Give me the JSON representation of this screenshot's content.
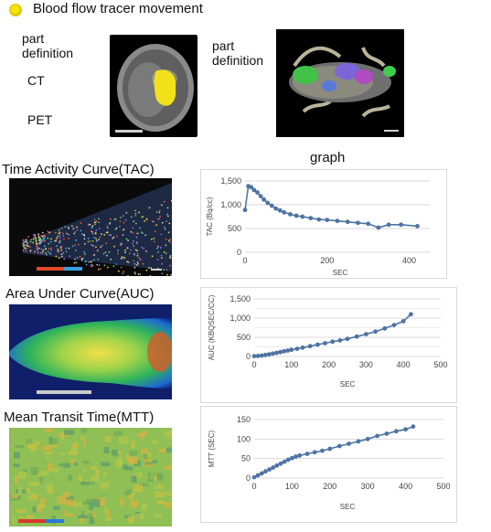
{
  "header": {
    "title": "Blood flow tracer movement",
    "bullet_color": "#e8d400"
  },
  "top_left": {
    "part_definition": "part\ndefinition",
    "ct": "CT",
    "pet": "PET"
  },
  "top_right": {
    "part_definition": "part\ndefinition"
  },
  "graph_heading": "graph",
  "sections": {
    "tac": "Time Activity Curve(TAC)",
    "auc": "Area Under Curve(AUC)",
    "mtt": "Mean Transit Time(MTT)"
  },
  "chart_data": [
    {
      "type": "line",
      "xlabel": "SEC",
      "ylabel": "TAC (Bq/cc)",
      "xlim": [
        0,
        450
      ],
      "ylim": [
        0,
        1500
      ],
      "xticks": [
        "0",
        "200",
        "400"
      ],
      "xtick_values": [
        0,
        200,
        400
      ],
      "yticks": [
        "0",
        "500",
        "1,000",
        "1,500"
      ],
      "ytick_values": [
        0,
        500,
        1000,
        1500
      ],
      "grid": true,
      "series": [
        {
          "color": "#4e73a3",
          "x": [
            0,
            8,
            15,
            22,
            30,
            38,
            46,
            55,
            65,
            75,
            85,
            95,
            110,
            125,
            140,
            160,
            180,
            200,
            225,
            250,
            275,
            300,
            325,
            350,
            380,
            420
          ],
          "y": [
            890,
            1390,
            1370,
            1310,
            1260,
            1180,
            1110,
            1040,
            980,
            920,
            880,
            840,
            800,
            770,
            750,
            720,
            690,
            680,
            660,
            640,
            620,
            600,
            520,
            580,
            580,
            550
          ]
        }
      ]
    },
    {
      "type": "line",
      "xlabel": "SEC",
      "ylabel": "AUC (KBQSEC/CC)",
      "xlim": [
        0,
        500
      ],
      "ylim": [
        0,
        1500
      ],
      "xticks": [
        "0",
        "100",
        "200",
        "300",
        "400",
        "500"
      ],
      "xtick_values": [
        0,
        100,
        200,
        300,
        400,
        500
      ],
      "yticks": [
        "0",
        "500",
        "1,000",
        "1,500"
      ],
      "ytick_values": [
        0,
        500,
        1000,
        1500
      ],
      "yticks_minor": [
        "250",
        "750",
        "1,250"
      ],
      "yticks_minor_values": [
        250,
        750,
        1250
      ],
      "grid": true,
      "series": [
        {
          "color": "#4e73a3",
          "x": [
            0,
            10,
            20,
            30,
            40,
            50,
            60,
            70,
            80,
            90,
            100,
            115,
            130,
            150,
            170,
            190,
            210,
            230,
            250,
            275,
            300,
            325,
            350,
            375,
            400,
            420
          ],
          "y": [
            10,
            15,
            25,
            40,
            55,
            75,
            95,
            115,
            135,
            155,
            175,
            200,
            230,
            270,
            310,
            345,
            385,
            420,
            460,
            520,
            580,
            650,
            730,
            820,
            920,
            1100
          ]
        }
      ]
    },
    {
      "type": "line",
      "xlabel": "SEC",
      "ylabel": "MTT (SEC)",
      "xlim": [
        0,
        500
      ],
      "ylim": [
        0,
        150
      ],
      "xticks": [
        "0",
        "100",
        "200",
        "300",
        "400",
        "500"
      ],
      "xtick_values": [
        0,
        100,
        200,
        300,
        400,
        500
      ],
      "yticks": [
        "0",
        "50",
        "100",
        "150"
      ],
      "ytick_values": [
        0,
        50,
        100,
        150
      ],
      "grid": true,
      "series": [
        {
          "color": "#4e73a3",
          "x": [
            0,
            10,
            20,
            30,
            40,
            50,
            60,
            70,
            80,
            90,
            100,
            110,
            120,
            140,
            160,
            180,
            200,
            225,
            250,
            275,
            300,
            325,
            350,
            375,
            400,
            420
          ],
          "y": [
            2,
            7,
            12,
            17,
            22,
            27,
            32,
            37,
            42,
            47,
            51,
            55,
            58,
            62,
            66,
            70,
            75,
            82,
            88,
            94,
            100,
            108,
            114,
            120,
            125,
            132
          ]
        }
      ]
    }
  ]
}
